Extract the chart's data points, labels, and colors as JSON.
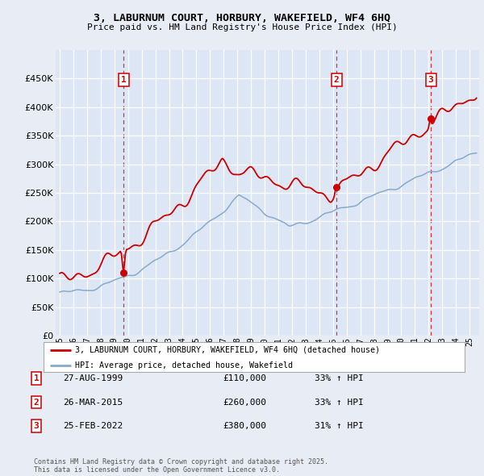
{
  "title1": "3, LABURNUM COURT, HORBURY, WAKEFIELD, WF4 6HQ",
  "title2": "Price paid vs. HM Land Registry's House Price Index (HPI)",
  "ylim": [
    0,
    500000
  ],
  "yticks": [
    0,
    50000,
    100000,
    150000,
    200000,
    250000,
    300000,
    350000,
    400000,
    450000
  ],
  "xlim_start": 1994.7,
  "xlim_end": 2025.7,
  "background_color": "#e8edf5",
  "plot_bg_color": "#dce6f4",
  "grid_color": "#ffffff",
  "red_line_color": "#cc0000",
  "blue_line_color": "#88aacc",
  "vline_color": "#dd2222",
  "box_edge_color": "#cc0000",
  "legend_label_red": "3, LABURNUM COURT, HORBURY, WAKEFIELD, WF4 6HQ (detached house)",
  "legend_label_blue": "HPI: Average price, detached house, Wakefield",
  "footnote": "Contains HM Land Registry data © Crown copyright and database right 2025.\nThis data is licensed under the Open Government Licence v3.0.",
  "sale_times": [
    1999.667,
    2015.25,
    2022.167
  ],
  "sale_prices": [
    110000,
    260000,
    380000
  ],
  "sale_nums": [
    1,
    2,
    3
  ],
  "sales": [
    {
      "num": 1,
      "date": "27-AUG-1999",
      "price": "£110,000",
      "hpi_change": "33% ↑ HPI"
    },
    {
      "num": 2,
      "date": "26-MAR-2015",
      "price": "£260,000",
      "hpi_change": "33% ↑ HPI"
    },
    {
      "num": 3,
      "date": "25-FEB-2022",
      "price": "£380,000",
      "hpi_change": "31% ↑ HPI"
    }
  ]
}
